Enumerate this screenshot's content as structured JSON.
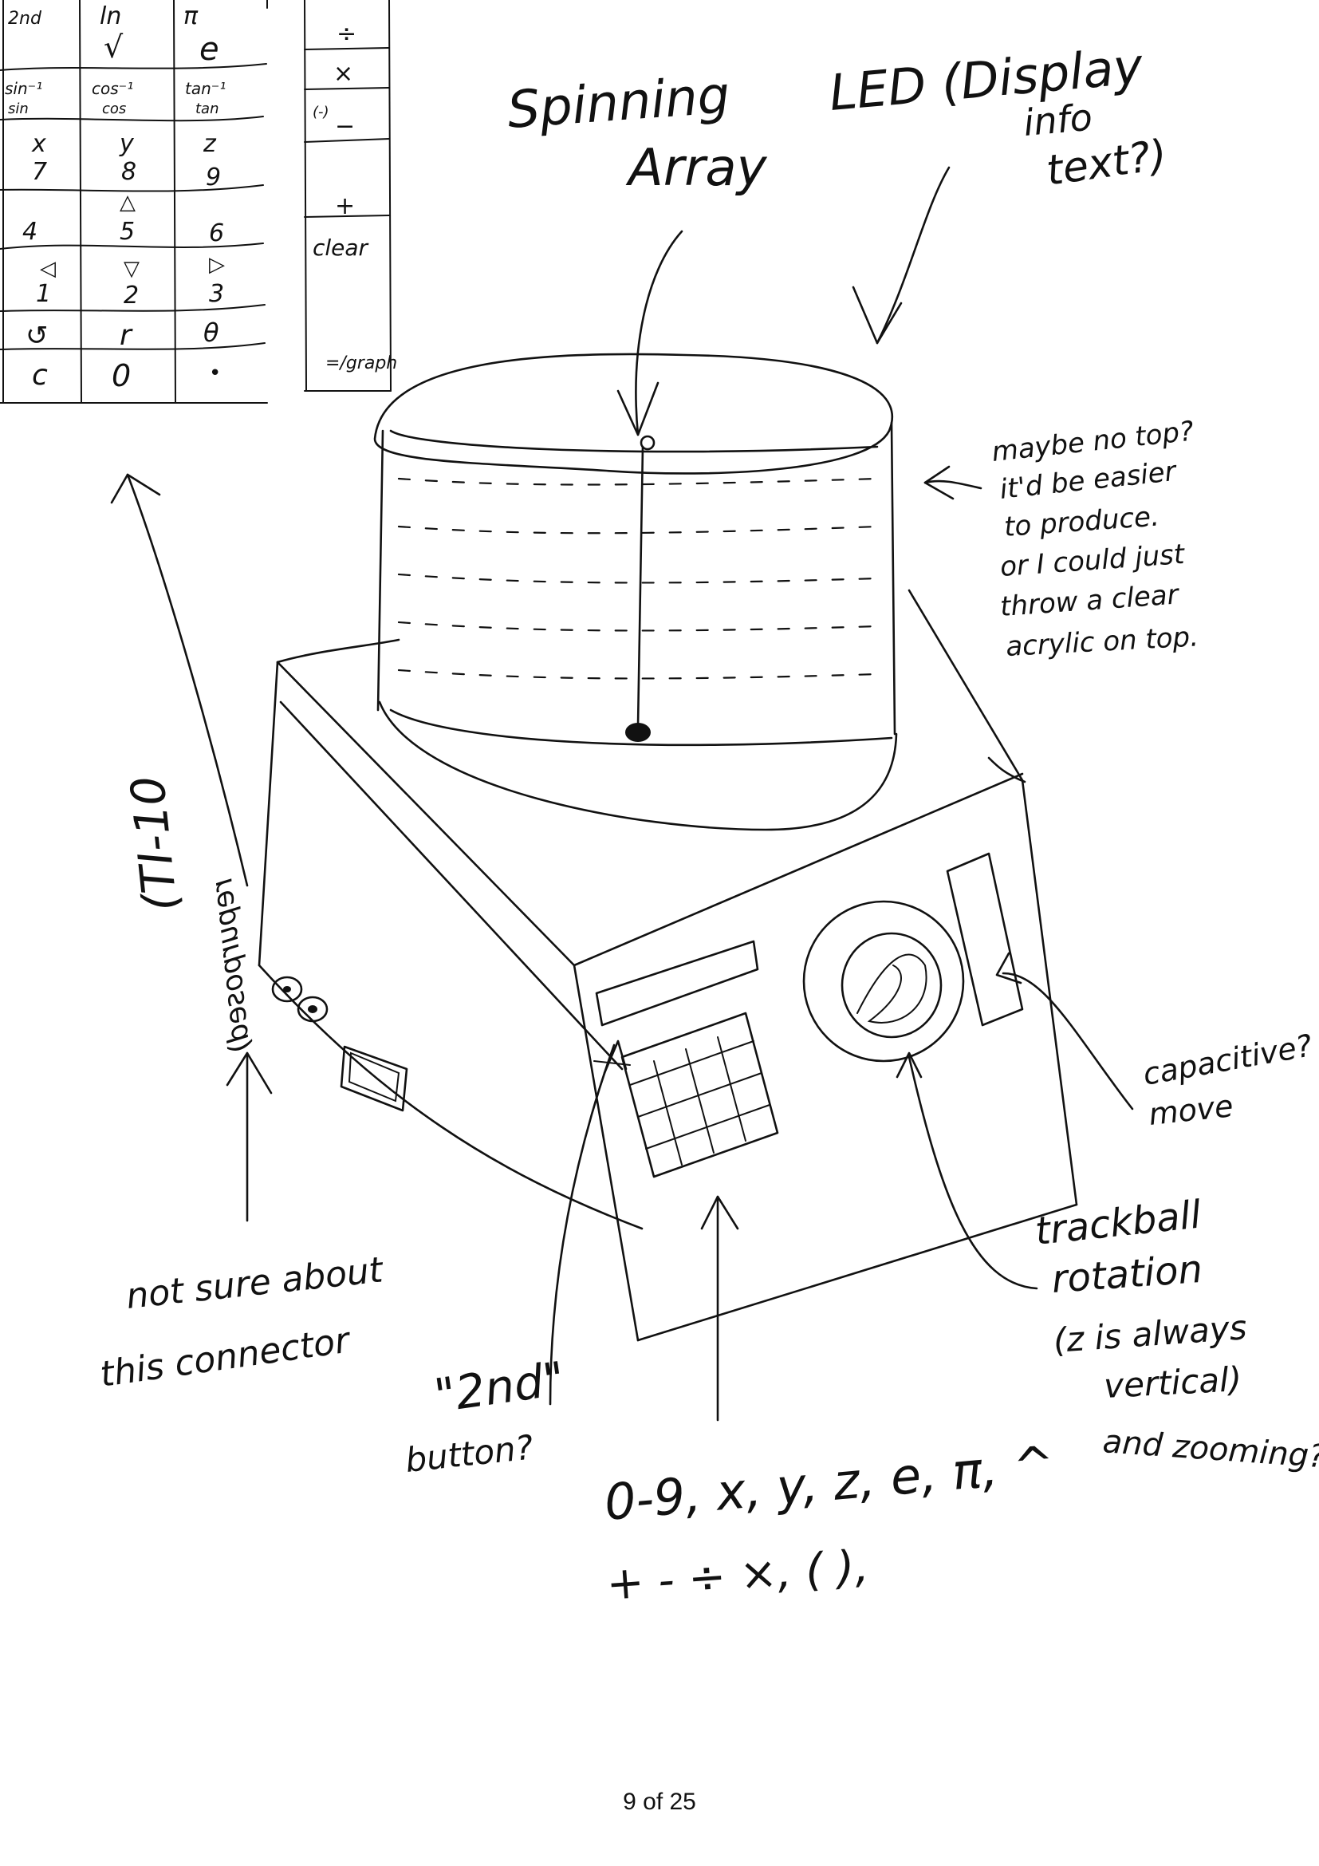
{
  "keypad_table": {
    "rows": [
      [
        "2nd",
        "ln",
        "π"
      ],
      [
        "",
        "√",
        "e"
      ],
      [
        "sin⁻¹",
        "cos⁻¹",
        "tan⁻¹"
      ],
      [
        "sin",
        "cos",
        "tan"
      ],
      [
        "x",
        "y",
        "z"
      ],
      [
        "7",
        "8",
        "9"
      ],
      [
        "",
        "△",
        ""
      ],
      [
        "4",
        "5",
        "6"
      ],
      [
        "◁",
        "▽",
        "▷"
      ],
      [
        "1",
        "2",
        "3"
      ],
      [
        "↺",
        "r",
        "θ"
      ],
      [
        "c",
        "0",
        "•"
      ]
    ],
    "side_column": [
      "÷",
      "×",
      "(-)",
      "−",
      "+",
      "clear",
      "=/graph"
    ]
  },
  "annotations": {
    "spinning_array_line1": "Spinning",
    "spinning_array_line2": "Array",
    "led_line1": "LED (Display",
    "led_line2": "info",
    "led_line3": "text?)",
    "top_line1": "maybe no top?",
    "top_line2": "it'd be easier",
    "top_line3": "to produce.",
    "top_line4": "or I could just",
    "top_line5": "throw a clear",
    "top_line6": "acrylic on top.",
    "ti_line1": "(TI-10",
    "ti_line2": "repurposed)",
    "connector_line1": "not sure about",
    "connector_line2": "this connector",
    "capacitive_line1": "capacitive?",
    "capacitive_line2": "move",
    "trackball_line1": "trackball",
    "trackball_line2": "rotation",
    "trackball_line3": "(z is always",
    "trackball_line4": "vertical)",
    "trackball_line5": "and zooming?",
    "second_line1": "\"2nd\"",
    "second_line2": "button?",
    "keys_line1": "0-9, x, y, z, e, π, ^",
    "keys_line2": "+ - ÷ ×, ( ),"
  },
  "footer": {
    "page_number": "9 of 25"
  }
}
